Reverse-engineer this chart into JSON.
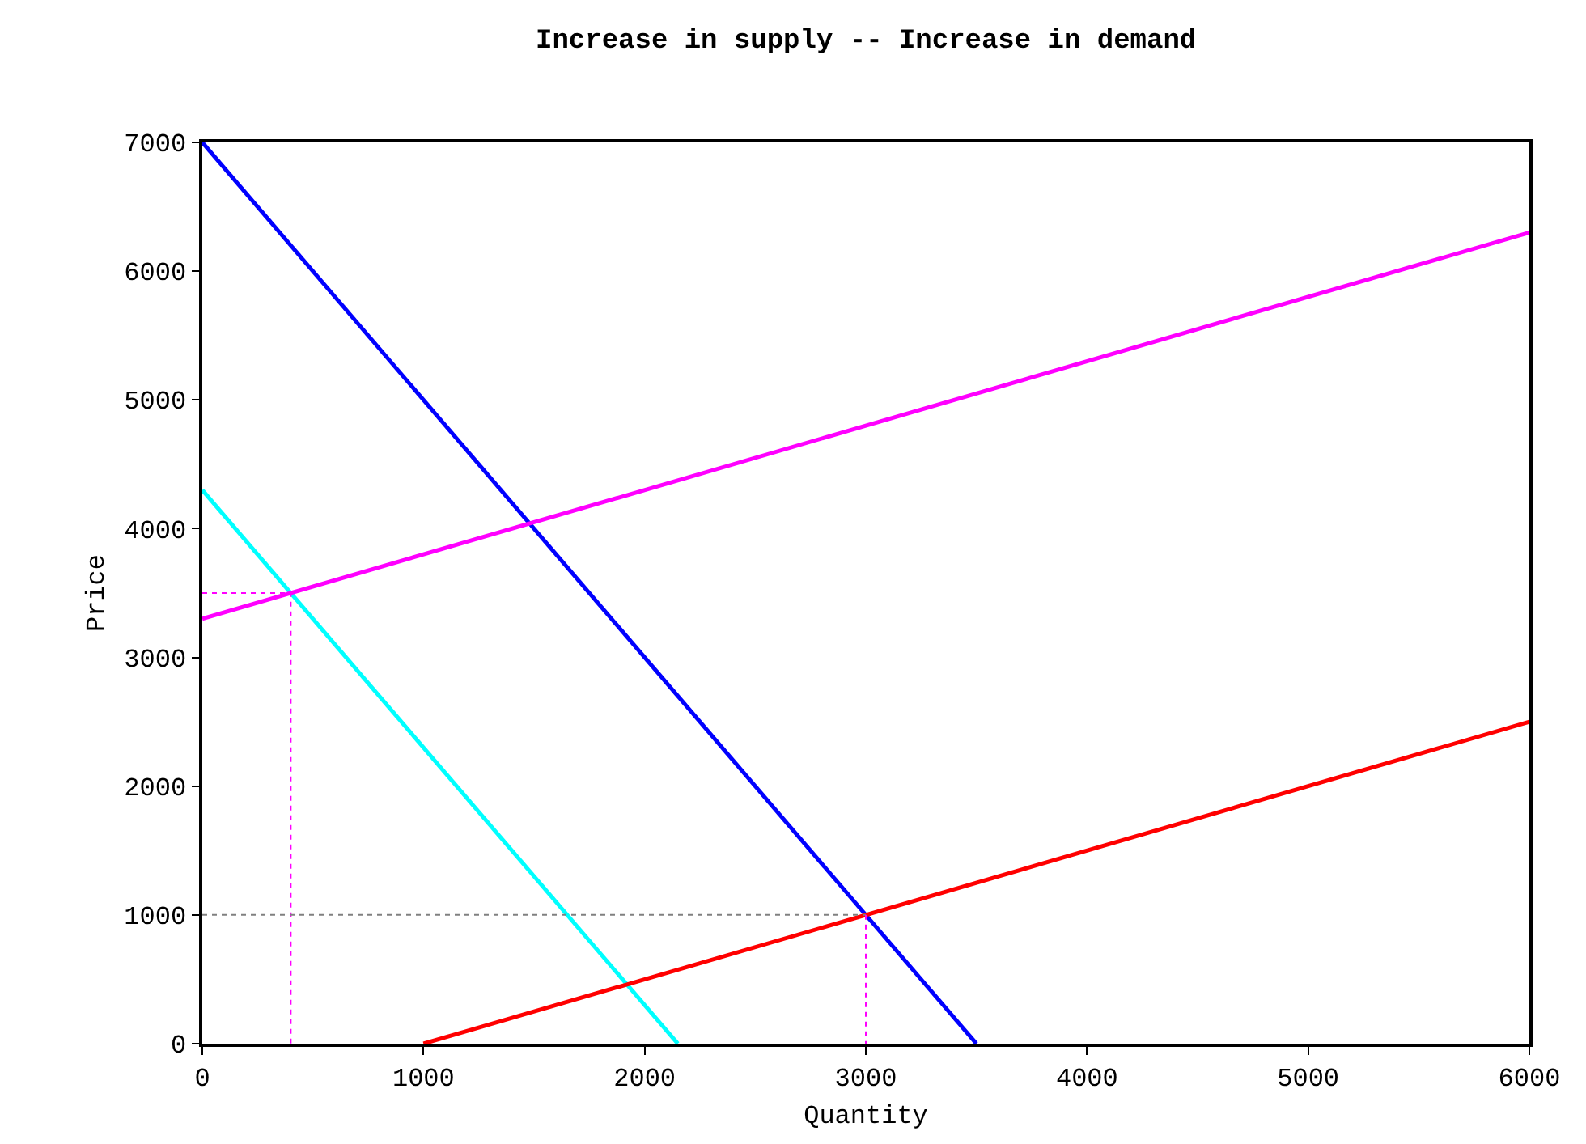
{
  "chart_data": {
    "type": "line",
    "title": "Increase in supply -- Increase in demand",
    "xlabel": "Quantity",
    "ylabel": "Price",
    "xlim": [
      0,
      6000
    ],
    "xticks": [
      0,
      1000,
      2000,
      3000,
      4000,
      5000,
      6000
    ],
    "ylim": [
      0,
      7000
    ],
    "yticks": [
      0,
      1000,
      2000,
      3000,
      4000,
      5000,
      6000,
      7000
    ],
    "marker": "none",
    "line_style": "solid",
    "series": [
      {
        "color": "#0000ff",
        "x": [
          0,
          3500
        ],
        "values": [
          7000,
          0
        ]
      },
      {
        "color": "#00ffff",
        "x": [
          0,
          2150
        ],
        "values": [
          4300,
          0
        ]
      },
      {
        "color": "#ff00ff",
        "x": [
          0,
          6000
        ],
        "values": [
          3300,
          6300
        ]
      },
      {
        "color": "#ff0000",
        "x": [
          1000,
          6000
        ],
        "values": [
          0,
          2500
        ]
      },
      {
        "color": "#ff00ff",
        "line_style": "dotted",
        "x": [
          0,
          400,
          400
        ],
        "values": [
          3500,
          3500,
          0
        ]
      },
      {
        "color": "#808080",
        "line_style": "dotted",
        "x": [
          0,
          3000
        ],
        "values": [
          1000,
          1000
        ]
      },
      {
        "color": "#ff00ff",
        "line_style": "dotted",
        "x": [
          3000,
          3000
        ],
        "values": [
          1000,
          0
        ]
      }
    ]
  }
}
